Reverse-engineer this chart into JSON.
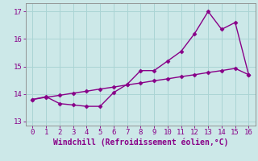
{
  "xlabel": "Windchill (Refroidissement éolien,°C)",
  "background_color": "#cce8e8",
  "line_color": "#880088",
  "grid_color": "#aad4d4",
  "xlim": [
    -0.5,
    16.5
  ],
  "ylim": [
    12.85,
    17.3
  ],
  "xticks": [
    0,
    1,
    2,
    3,
    4,
    5,
    6,
    7,
    8,
    9,
    10,
    11,
    12,
    13,
    14,
    15,
    16
  ],
  "yticks": [
    13,
    14,
    15,
    16,
    17
  ],
  "curve_x": [
    0,
    1,
    2,
    3,
    4,
    5,
    6,
    7,
    8,
    9,
    10,
    11,
    12,
    13,
    14,
    15,
    16
  ],
  "curve_y": [
    13.8,
    13.9,
    13.65,
    13.6,
    13.55,
    13.55,
    14.05,
    14.35,
    14.85,
    14.85,
    15.2,
    15.55,
    16.2,
    17.0,
    16.35,
    16.6,
    14.7
  ],
  "straight_x": [
    0,
    1,
    2,
    3,
    4,
    5,
    6,
    7,
    8,
    9,
    10,
    11,
    12,
    13,
    14,
    15,
    16
  ],
  "straight_y": [
    13.8,
    13.88,
    13.95,
    14.03,
    14.1,
    14.18,
    14.25,
    14.33,
    14.4,
    14.48,
    14.55,
    14.63,
    14.7,
    14.78,
    14.85,
    14.93,
    14.7
  ],
  "marker": "D",
  "markersize": 2.5,
  "linewidth": 1.0,
  "tick_fontsize": 6.5,
  "label_fontsize": 7.0
}
